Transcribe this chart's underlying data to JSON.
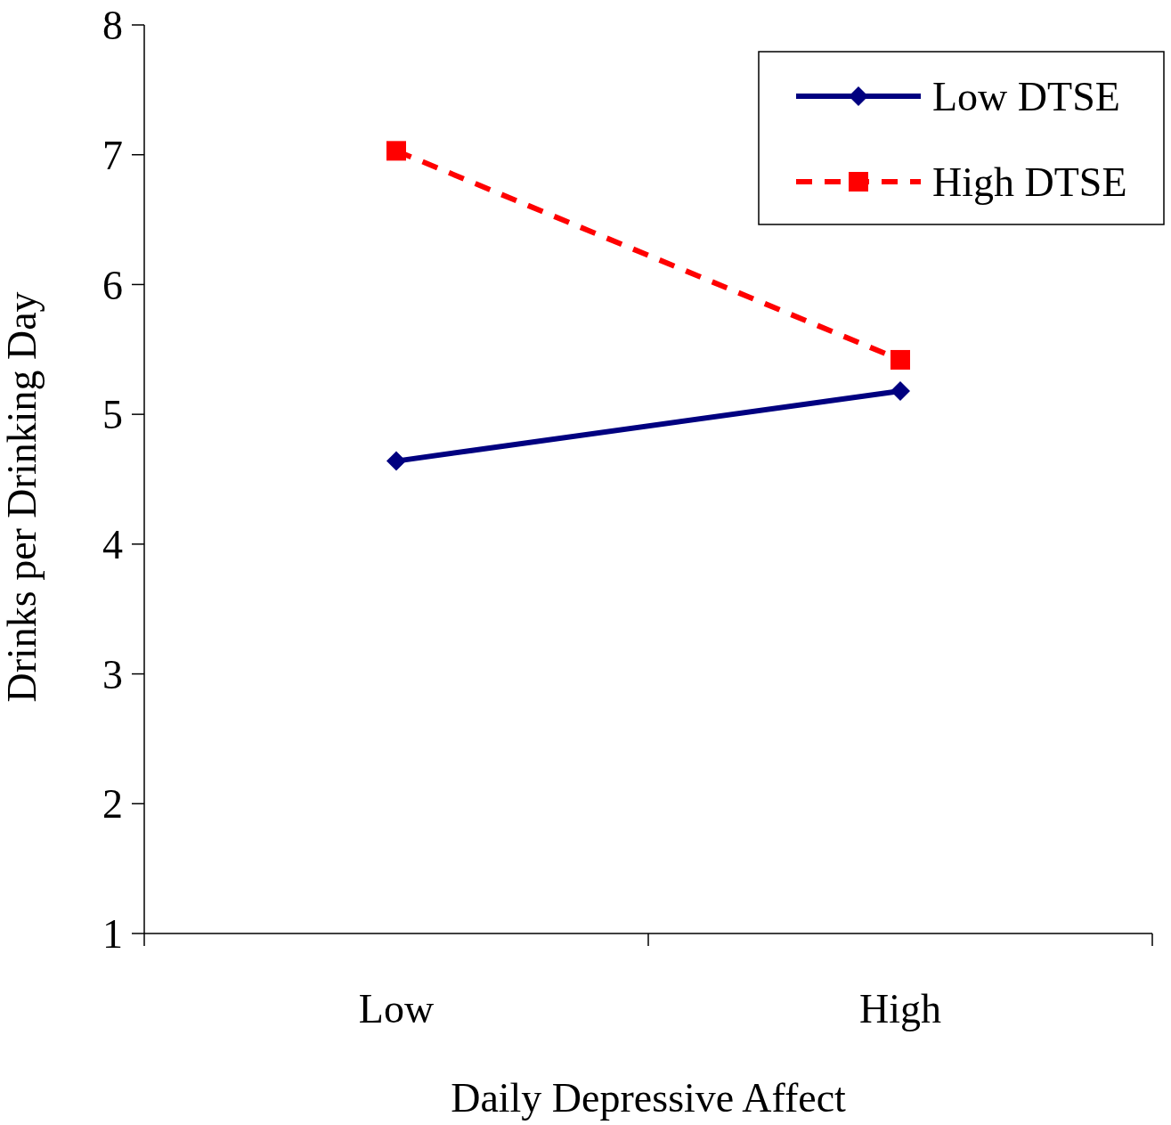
{
  "chart_data": {
    "type": "line",
    "xlabel": "Daily Depressive Affect",
    "ylabel": "Drinks per Drinking Day",
    "categories": [
      "Low",
      "High"
    ],
    "series": [
      {
        "name": "Low DTSE",
        "color": "#000080",
        "values": [
          4.64,
          5.18
        ],
        "marker": "diamond",
        "line_style": "solid"
      },
      {
        "name": "High DTSE",
        "color": "#ff0000",
        "values": [
          7.03,
          5.42
        ],
        "marker": "square",
        "line_style": "dashed"
      }
    ],
    "ylim": [
      1,
      8
    ],
    "yticks": [
      1,
      2,
      3,
      4,
      5,
      6,
      7,
      8
    ],
    "grid": false,
    "legend": "top right"
  }
}
